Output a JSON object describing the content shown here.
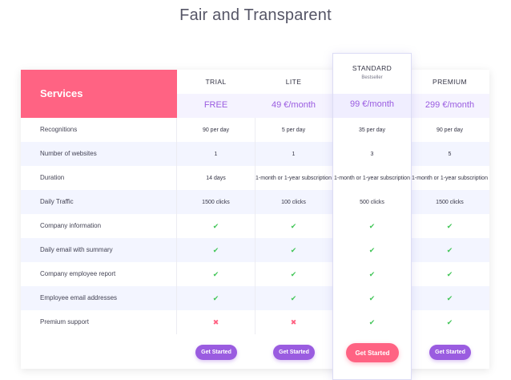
{
  "title": "Fair and Transparent",
  "services_label": "Services",
  "plans": [
    {
      "name": "TRIAL",
      "subtitle": "",
      "price": "FREE",
      "button": "Get Started"
    },
    {
      "name": "LITE",
      "subtitle": "",
      "price": "49 €/month",
      "button": "Get Started"
    },
    {
      "name": "STANDARD",
      "subtitle": "Bestseller",
      "price": "99 €/month",
      "button": "Get Started"
    },
    {
      "name": "PREMIUM",
      "subtitle": "",
      "price": "299 €/month",
      "button": "Get Started"
    }
  ],
  "rows": [
    {
      "label": "Recognitions",
      "values": [
        "90 per day",
        "5 per day",
        "35 per day",
        "90 per day"
      ]
    },
    {
      "label": "Number of websites",
      "values": [
        "1",
        "1",
        "3",
        "5"
      ]
    },
    {
      "label": "Duration",
      "values": [
        "14 days",
        "1-month or 1-year subscription",
        "1-month or 1-year subscription",
        "1-month or 1-year subscription"
      ]
    },
    {
      "label": "Daily Traffic",
      "values": [
        "1500 clicks",
        "100 clicks",
        "500 clicks",
        "1500 clicks"
      ]
    },
    {
      "label": "Company information",
      "values": [
        "check",
        "check",
        "check",
        "check"
      ]
    },
    {
      "label": "Daily email with summary",
      "values": [
        "check",
        "check",
        "check",
        "check"
      ]
    },
    {
      "label": "Company employee report",
      "values": [
        "check",
        "check",
        "check",
        "check"
      ]
    },
    {
      "label": "Employee email addresses",
      "values": [
        "check",
        "check",
        "check",
        "check"
      ]
    },
    {
      "label": "Premium support",
      "values": [
        "cross",
        "cross",
        "check",
        "check"
      ]
    }
  ],
  "icons": {
    "check": "check-icon",
    "cross": "cross-icon"
  },
  "colors": {
    "accent_pink": "#ff6383",
    "accent_purple": "#9a5ce0",
    "check_green": "#43c659",
    "row_alt": "#f3f5ff"
  }
}
